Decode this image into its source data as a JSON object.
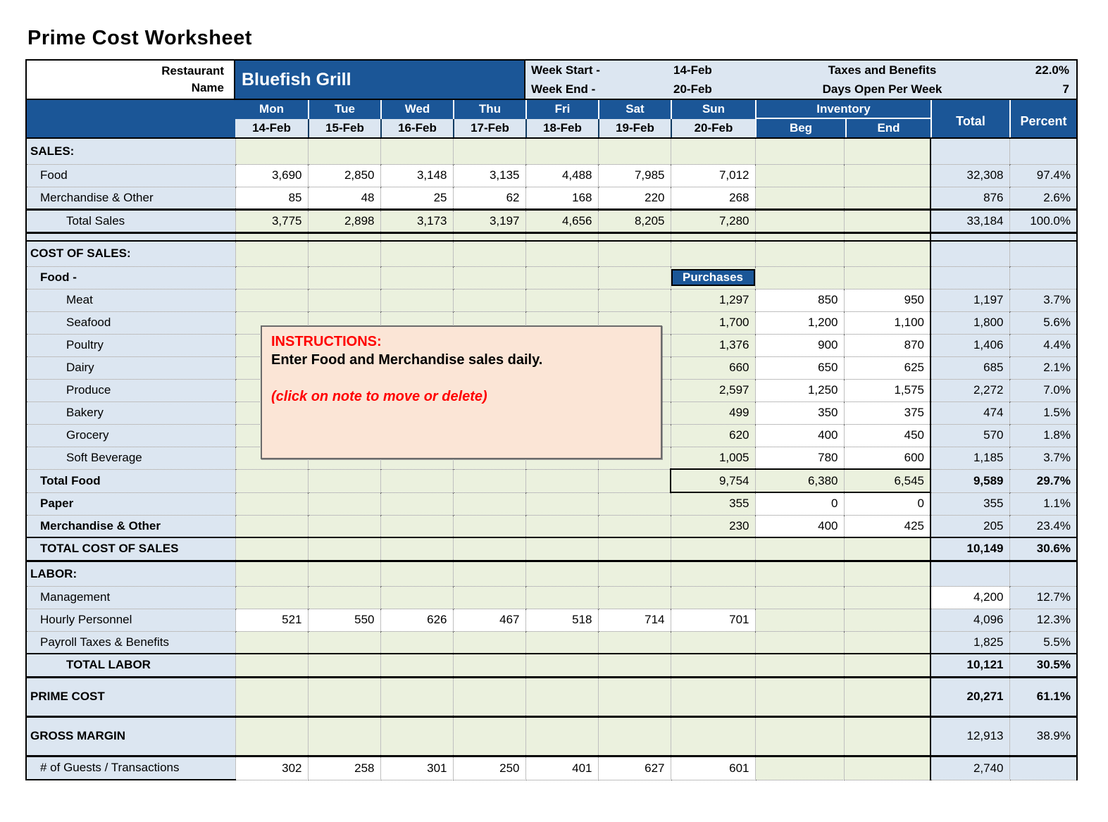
{
  "title": "Prime Cost Worksheet",
  "header": {
    "restaurant_label_line1": "Restaurant",
    "restaurant_label_line2": "Name",
    "restaurant_name": "Bluefish Grill",
    "week_rows": [
      {
        "label": "Week Start -",
        "value": "14-Feb",
        "stat_label": "Taxes and Benefits",
        "stat_value": "22.0%"
      },
      {
        "label": "Week End -",
        "value": "20-Feb",
        "stat_label": "Days Open Per Week",
        "stat_value": "7"
      }
    ]
  },
  "columns": {
    "days": [
      "Mon",
      "Tue",
      "Wed",
      "Thu",
      "Fri",
      "Sat",
      "Sun"
    ],
    "dates": [
      "14-Feb",
      "15-Feb",
      "16-Feb",
      "17-Feb",
      "18-Feb",
      "19-Feb",
      "20-Feb"
    ],
    "inventory_label": "Inventory",
    "beg_label": "Beg",
    "end_label": "End",
    "total_label": "Total",
    "percent_label": "Percent"
  },
  "purchases_label": "Purchases",
  "note": {
    "heading": "INSTRUCTIONS:",
    "body": "Enter Food and Merchandise sales daily.",
    "footer": "(click on note to move or delete)"
  },
  "colors": {
    "header_blue": "#1B5697",
    "light_blue": "#DCE6F1",
    "light_green": "#EBF1DE",
    "note_peach": "#FBE5D6",
    "note_red": "#FF0000"
  },
  "rows": [
    {
      "id": "sales-section",
      "label": "SALES:",
      "bold": true,
      "kind": "section",
      "indent": 0,
      "days": [
        "",
        "",
        "",
        "",
        "",
        "",
        ""
      ],
      "beg": "",
      "end": "",
      "total": "",
      "percent": ""
    },
    {
      "id": "food-sales",
      "label": "Food",
      "indent": 1,
      "days_input": true,
      "days": [
        "3,690",
        "2,850",
        "3,148",
        "3,135",
        "4,488",
        "7,985",
        "7,012"
      ],
      "beg": "",
      "end": "",
      "total": "32,308",
      "percent": "97.4%"
    },
    {
      "id": "merch-sales",
      "label": "Merchandise & Other",
      "indent": 1,
      "days_input": true,
      "days": [
        "85",
        "48",
        "25",
        "62",
        "168",
        "220",
        "268"
      ],
      "beg": "",
      "end": "",
      "total": "876",
      "percent": "2.6%"
    },
    {
      "id": "total-sales",
      "label": "Total Sales",
      "indent": 2,
      "kind": "total",
      "top": "thick",
      "days": [
        "3,775",
        "2,898",
        "3,173",
        "3,197",
        "4,656",
        "8,205",
        "7,280"
      ],
      "beg": "",
      "end": "",
      "total": "33,184",
      "percent": "100.0%"
    },
    {
      "id": "spacer",
      "label": "",
      "kind": "spacer",
      "top": "thick",
      "days": [
        "",
        "",
        "",
        "",
        "",
        "",
        ""
      ],
      "beg": "",
      "end": "",
      "total": "",
      "percent": ""
    },
    {
      "id": "cos-section",
      "label": "COST OF SALES:",
      "bold": true,
      "kind": "section",
      "top": "thin",
      "indent": 0,
      "days": [
        "",
        "",
        "",
        "",
        "",
        "",
        ""
      ],
      "beg": "",
      "end": "",
      "total": "",
      "percent": ""
    },
    {
      "id": "food-sub",
      "label": "Food -",
      "bold": true,
      "indent": 1,
      "purchases": true,
      "days": [
        "",
        "",
        "",
        "",
        "",
        "",
        ""
      ],
      "beg": "",
      "end": "",
      "total": "",
      "percent": ""
    },
    {
      "id": "meat",
      "label": "Meat",
      "indent": 2,
      "inv_input": true,
      "days": [
        "",
        "",
        "",
        "",
        "",
        "",
        "1,297"
      ],
      "beg": "850",
      "end": "950",
      "total": "1,197",
      "percent": "3.7%"
    },
    {
      "id": "seafood",
      "label": "Seafood",
      "indent": 2,
      "inv_input": true,
      "days": [
        "",
        "",
        "",
        "",
        "",
        "",
        "1,700"
      ],
      "beg": "1,200",
      "end": "1,100",
      "total": "1,800",
      "percent": "5.6%"
    },
    {
      "id": "poultry",
      "label": "Poultry",
      "indent": 2,
      "inv_input": true,
      "days": [
        "",
        "",
        "",
        "",
        "",
        "",
        "1,376"
      ],
      "beg": "900",
      "end": "870",
      "total": "1,406",
      "percent": "4.4%"
    },
    {
      "id": "dairy",
      "label": "Dairy",
      "indent": 2,
      "inv_input": true,
      "days": [
        "",
        "",
        "",
        "",
        "",
        "",
        "660"
      ],
      "beg": "650",
      "end": "625",
      "total": "685",
      "percent": "2.1%"
    },
    {
      "id": "produce",
      "label": "Produce",
      "indent": 2,
      "inv_input": true,
      "days": [
        "",
        "",
        "",
        "",
        "",
        "",
        "2,597"
      ],
      "beg": "1,250",
      "end": "1,575",
      "total": "2,272",
      "percent": "7.0%"
    },
    {
      "id": "bakery",
      "label": "Bakery",
      "indent": 2,
      "inv_input": true,
      "days": [
        "",
        "",
        "",
        "",
        "",
        "",
        "499"
      ],
      "beg": "350",
      "end": "375",
      "total": "474",
      "percent": "1.5%"
    },
    {
      "id": "grocery",
      "label": "Grocery",
      "indent": 2,
      "inv_input": true,
      "days": [
        "",
        "",
        "",
        "",
        "",
        "",
        "620"
      ],
      "beg": "400",
      "end": "450",
      "total": "570",
      "percent": "1.8%"
    },
    {
      "id": "soft-beverage",
      "label": "Soft Beverage",
      "indent": 2,
      "inv_input": true,
      "days": [
        "",
        "",
        "",
        "",
        "",
        "",
        "1,005"
      ],
      "beg": "780",
      "end": "600",
      "total": "1,185",
      "percent": "3.7%"
    },
    {
      "id": "total-food",
      "label": "Total Food",
      "bold": true,
      "indent": 1,
      "kind": "total",
      "inv_box": true,
      "bold_total": true,
      "days": [
        "",
        "",
        "",
        "",
        "",
        "",
        "9,754"
      ],
      "beg": "6,380",
      "end": "6,545",
      "total": "9,589",
      "percent": "29.7%"
    },
    {
      "id": "paper",
      "label": "Paper",
      "bold": true,
      "indent": 1,
      "inv_input": true,
      "days": [
        "",
        "",
        "",
        "",
        "",
        "",
        "355"
      ],
      "beg": "0",
      "end": "0",
      "total": "355",
      "percent": "1.1%"
    },
    {
      "id": "merch-cos",
      "label": "Merchandise & Other",
      "bold": true,
      "indent": 1,
      "inv_input": true,
      "days": [
        "",
        "",
        "",
        "",
        "",
        "",
        "230"
      ],
      "beg": "400",
      "end": "425",
      "total": "205",
      "percent": "23.4%"
    },
    {
      "id": "total-cos",
      "label": "TOTAL COST OF SALES",
      "bold": true,
      "indent": 1,
      "kind": "total",
      "top": "thin",
      "bold_total": true,
      "days": [
        "",
        "",
        "",
        "",
        "",
        "",
        ""
      ],
      "beg": "",
      "end": "",
      "total": "10,149",
      "percent": "30.6%"
    },
    {
      "id": "labor-section",
      "label": "LABOR:",
      "bold": true,
      "kind": "section",
      "top": "thick",
      "indent": 0,
      "days": [
        "",
        "",
        "",
        "",
        "",
        "",
        ""
      ],
      "beg": "",
      "end": "",
      "total": "",
      "percent": ""
    },
    {
      "id": "management",
      "label": "Management",
      "indent": 1,
      "total_white": true,
      "days": [
        "",
        "",
        "",
        "",
        "",
        "",
        ""
      ],
      "beg": "",
      "end": "",
      "total": "4,200",
      "percent": "12.7%"
    },
    {
      "id": "hourly",
      "label": "Hourly Personnel",
      "indent": 1,
      "days_input": true,
      "days": [
        "521",
        "550",
        "626",
        "467",
        "518",
        "714",
        "701"
      ],
      "beg": "",
      "end": "",
      "total": "4,096",
      "percent": "12.3%"
    },
    {
      "id": "payroll",
      "label": "Payroll Taxes & Benefits",
      "indent": 1,
      "days": [
        "",
        "",
        "",
        "",
        "",
        "",
        ""
      ],
      "beg": "",
      "end": "",
      "total": "1,825",
      "percent": "5.5%"
    },
    {
      "id": "total-labor",
      "label": "TOTAL LABOR",
      "bold": true,
      "indent": 2,
      "kind": "total",
      "top": "thin",
      "bold_total": true,
      "days": [
        "",
        "",
        "",
        "",
        "",
        "",
        ""
      ],
      "beg": "",
      "end": "",
      "total": "10,121",
      "percent": "30.5%"
    },
    {
      "id": "prime-cost",
      "label": "PRIME COST",
      "bold": true,
      "kind": "big",
      "top": "thick",
      "bold_total": true,
      "indent": 0,
      "days": [
        "",
        "",
        "",
        "",
        "",
        "",
        ""
      ],
      "beg": "",
      "end": "",
      "total": "20,271",
      "percent": "61.1%"
    },
    {
      "id": "gross-margin",
      "label": "GROSS MARGIN",
      "bold": true,
      "kind": "big",
      "top": "thick",
      "indent": 0,
      "days": [
        "",
        "",
        "",
        "",
        "",
        "",
        ""
      ],
      "beg": "",
      "end": "",
      "total": "12,913",
      "percent": "38.9%"
    },
    {
      "id": "guests",
      "label": "# of Guests / Transactions",
      "indent": 1,
      "kind": "guests",
      "top": "thick",
      "days_input": true,
      "last": true,
      "days": [
        "302",
        "258",
        "301",
        "250",
        "401",
        "627",
        "601"
      ],
      "beg": "",
      "end": "",
      "total": "2,740",
      "percent": ""
    }
  ]
}
